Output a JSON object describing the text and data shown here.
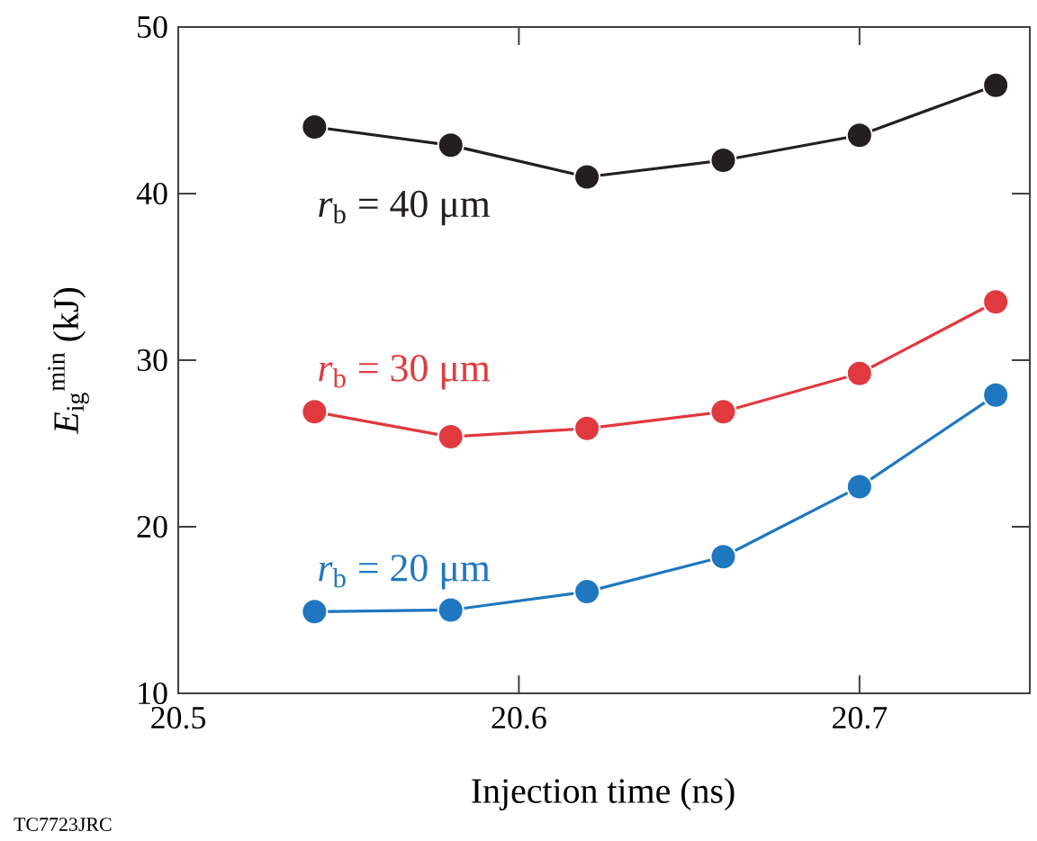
{
  "chart_data": {
    "type": "line",
    "xlabel": "Injection time (ns)",
    "ylabel": "*E*$_{ig}$$^{min}$ (kJ)",
    "x": [
      20.54,
      20.58,
      20.62,
      20.66,
      20.7,
      20.74
    ],
    "series": [
      {
        "name": "*r*$_{b}$ = 40 μm",
        "color": "#231f20",
        "values": [
          44.0,
          42.9,
          41.0,
          42.0,
          43.5,
          46.5
        ]
      },
      {
        "name": "*r*$_{b}$ = 30 μm",
        "color": "#e03a3e",
        "values": [
          26.9,
          25.4,
          25.9,
          26.9,
          29.2,
          33.5
        ]
      },
      {
        "name": "*r*$_{b}$ = 20 μm",
        "color": "#1f77c0",
        "values": [
          14.9,
          15.0,
          16.1,
          18.2,
          22.4,
          27.9
        ]
      }
    ],
    "xlim": [
      20.5,
      20.75
    ],
    "xticks": [
      20.5,
      20.6,
      20.7
    ],
    "ylim": [
      10,
      50
    ],
    "yticks": [
      10,
      20,
      30,
      40,
      50
    ],
    "marker": "circle",
    "line_style": "solid",
    "grid": false,
    "annotations": [
      "TC7723JRC"
    ]
  }
}
